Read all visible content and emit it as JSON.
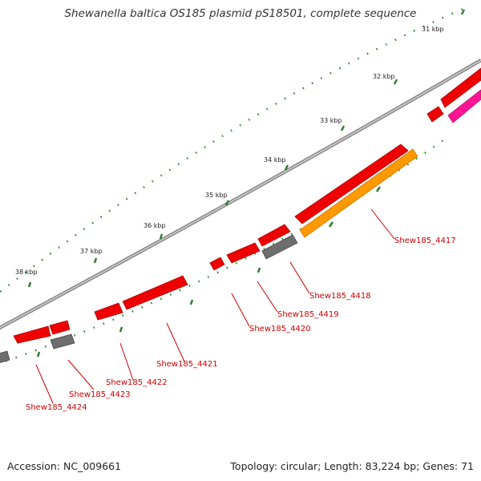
{
  "title": "Shewanella baltica OS185 plasmid pS18501, complete sequence",
  "footer": {
    "accession": "Accession: NC_009661",
    "summary": "Topology: circular; Length: 83,224 bp; Genes: 71"
  },
  "colors": {
    "backbone": "#8c8c8c",
    "gene_red": "#ee0000",
    "gene_grey": "#6e6e6e",
    "gene_orange": "#ff9900",
    "gene_pink": "#ff1493",
    "label": "#cc0000",
    "tick_green": "#2e7d32"
  },
  "kbp_markers": [
    "31 kbp",
    "32 kbp",
    "33 kbp",
    "34 kbp",
    "35 kbp",
    "36 kbp",
    "37 kbp",
    "38 kbp"
  ],
  "gene_labels": [
    "Shew185_4417",
    "Shew185_4418",
    "Shew185_4419",
    "Shew185_4420",
    "Shew185_4421",
    "Shew185_4422",
    "Shew185_4423",
    "Shew185_4424"
  ]
}
